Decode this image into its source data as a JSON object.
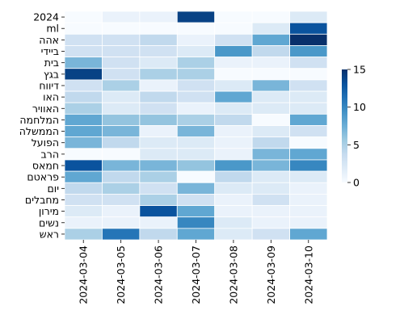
{
  "chart_data": {
    "type": "heatmap",
    "title": "",
    "xlabel": "",
    "ylabel": "",
    "colormap": "Blues",
    "grid": false,
    "legend": "colorbar-right",
    "colorbar": {
      "min": 0,
      "max": 15,
      "ticks": [
        0,
        5,
        10,
        15
      ]
    },
    "x": [
      "2024-03-04",
      "2024-03-05",
      "2024-03-06",
      "2024-03-07",
      "2024-03-08",
      "2024-03-09",
      "2024-03-10"
    ],
    "y": [
      "2024",
      "ml",
      "אהה",
      "ביידי",
      "בית",
      "בגץ",
      "דיווח",
      "האו",
      "האוויר",
      "המלחמה",
      "הממשלה",
      "הפועל",
      "הרב",
      "חמאס",
      "פראטם",
      "יום",
      "מחבלים",
      "מירון",
      "נשים",
      "ראש"
    ],
    "values": [
      [
        0,
        1,
        1,
        14,
        0,
        0,
        2
      ],
      [
        0,
        0,
        0,
        0,
        0,
        2,
        13
      ],
      [
        3,
        3,
        4,
        1,
        3,
        8,
        17
      ],
      [
        3,
        3,
        3,
        2,
        9,
        4,
        9
      ],
      [
        7,
        3,
        2,
        5,
        1,
        1,
        3
      ],
      [
        14,
        3,
        5,
        5,
        0,
        0,
        0
      ],
      [
        3,
        5,
        1,
        3,
        2,
        7,
        3
      ],
      [
        4,
        2,
        4,
        3,
        8,
        2,
        2
      ],
      [
        5,
        2,
        3,
        1,
        2,
        2,
        2
      ],
      [
        8,
        6,
        6,
        5,
        4,
        0,
        8
      ],
      [
        8,
        7,
        1,
        7,
        1,
        2,
        3
      ],
      [
        7,
        4,
        2,
        2,
        1,
        4,
        0
      ],
      [
        0,
        0,
        2,
        2,
        1,
        7,
        8
      ],
      [
        13,
        7,
        7,
        6,
        9,
        7,
        10
      ],
      [
        8,
        4,
        5,
        0,
        4,
        2,
        2
      ],
      [
        4,
        5,
        3,
        7,
        2,
        2,
        1
      ],
      [
        3,
        3,
        5,
        3,
        1,
        3,
        1
      ],
      [
        2,
        1,
        13,
        8,
        1,
        1,
        1
      ],
      [
        1,
        1,
        1,
        10,
        2,
        1,
        1
      ],
      [
        5,
        11,
        4,
        8,
        2,
        3,
        8
      ]
    ]
  }
}
